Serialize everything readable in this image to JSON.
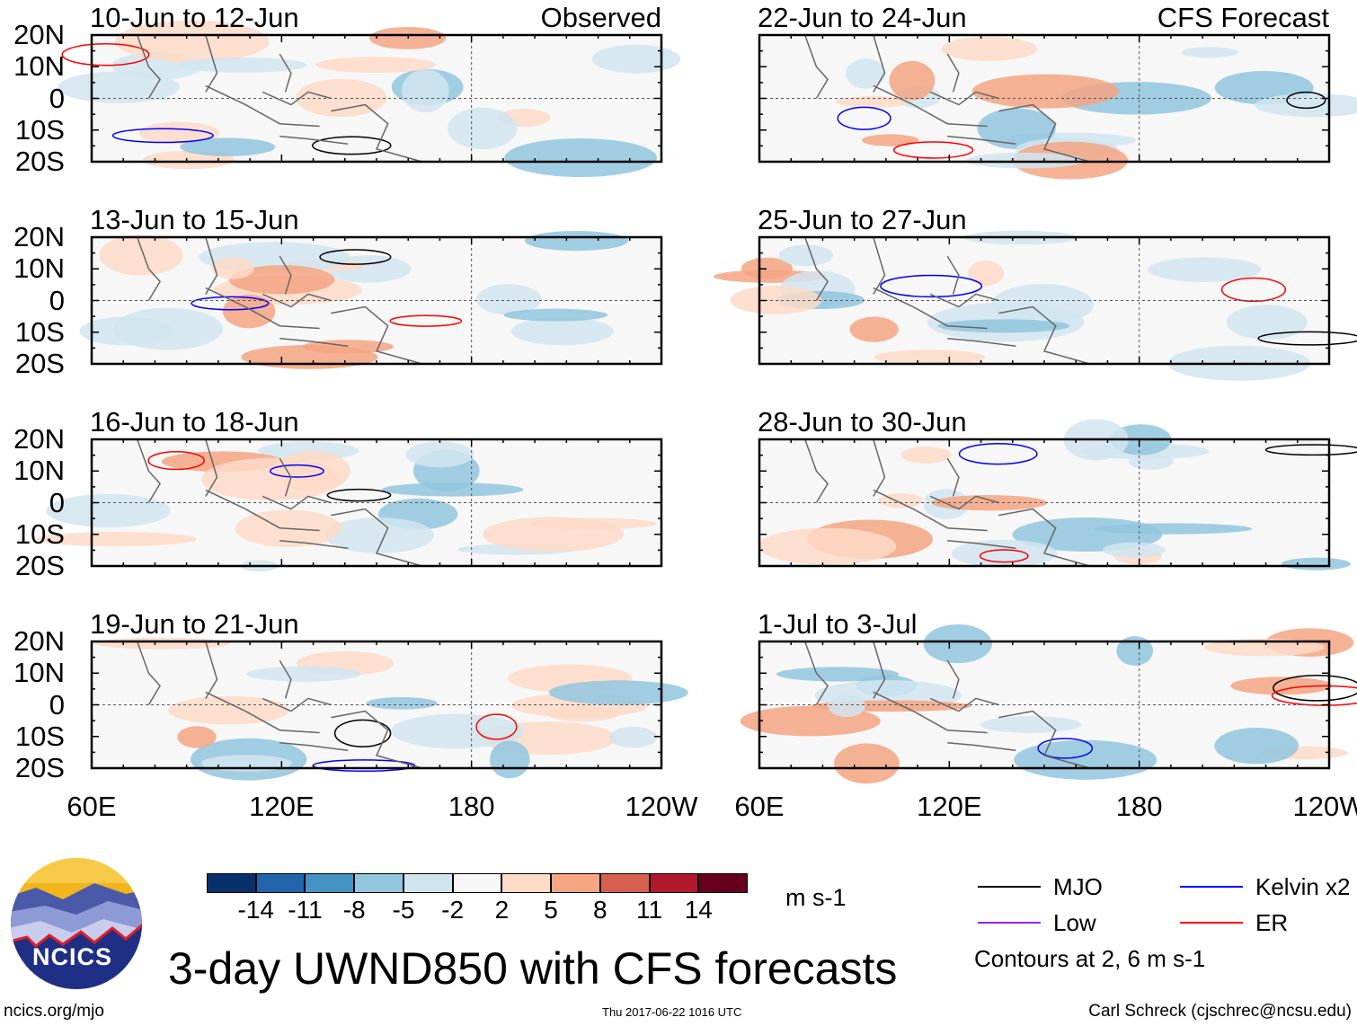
{
  "title": "3-day UWND850 with CFS forecasts",
  "source_url_text": "ncics.org/mjo",
  "timestamp": "Thu 2017-06-22 1016 UTC",
  "credit": "Carl Schreck (cjschrec@ncsu.edu)",
  "logo_text": "NCICS",
  "left_column_label": "Observed",
  "right_column_label": "CFS Forecast",
  "lat_labels": [
    "20N",
    "10N",
    "0",
    "10S",
    "20S"
  ],
  "lon_labels": [
    "60E",
    "120E",
    "180",
    "120W"
  ],
  "panels_left": [
    "10-Jun to 12-Jun",
    "13-Jun to 15-Jun",
    "16-Jun to 18-Jun",
    "19-Jun to 21-Jun"
  ],
  "panels_right": [
    "22-Jun to 24-Jun",
    "25-Jun to 27-Jun",
    "28-Jun to 30-Jun",
    "1-Jul to 3-Jul"
  ],
  "colorbar": {
    "units": "m s-1",
    "labels": [
      "-14",
      "-11",
      "-8",
      "-5",
      "-2",
      "2",
      "5",
      "8",
      "11",
      "14"
    ],
    "colors": [
      "#08306b",
      "#2166ac",
      "#4393c3",
      "#92c5de",
      "#d1e5f0",
      "#f7f7f7",
      "#fddbc7",
      "#f4a582",
      "#d6604d",
      "#b2182b",
      "#67001f"
    ]
  },
  "legend": {
    "items": [
      {
        "label": "MJO",
        "color": "#000000"
      },
      {
        "label": "Low",
        "color": "#a020f0"
      },
      {
        "label": "Kelvin x2",
        "color": "#0000ff"
      },
      {
        "label": "ER",
        "color": "#ff0000"
      }
    ],
    "note": "Contours at 2, 6 m s-1"
  }
}
